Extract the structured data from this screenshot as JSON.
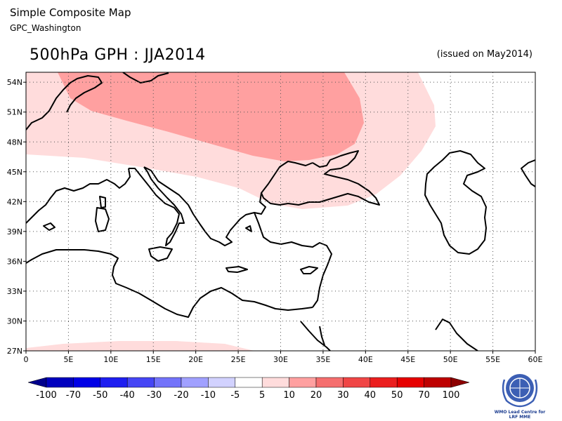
{
  "header": {
    "title": "Simple Composite Map",
    "subtitle": "GPC_Washington"
  },
  "map": {
    "title": "500hPa GPH : JJA2014",
    "issued": "(issued on May2014)",
    "lon_range": [
      0,
      60
    ],
    "lat_range": [
      27,
      55
    ],
    "lon_ticks": [
      "0",
      "5E",
      "10E",
      "15E",
      "20E",
      "25E",
      "30E",
      "35E",
      "40E",
      "45E",
      "50E",
      "55E",
      "60E"
    ],
    "lat_ticks": [
      "27N",
      "30N",
      "33N",
      "36N",
      "39N",
      "42N",
      "45N",
      "48N",
      "51N",
      "54N"
    ],
    "grid": "dotted",
    "anomaly_regions": [
      {
        "level": "5 to 10",
        "color": "#ffdcdc",
        "area": "central and eastern Europe, Black Sea, Caucasus"
      },
      {
        "level": "10 to 20",
        "color": "#ffa0a0",
        "area": "central Europe to Ukraine and southern Russia"
      },
      {
        "level": "5 to 10",
        "color": "#ffdcdc",
        "area": "northern Africa band near 27N"
      }
    ]
  },
  "colorbar": {
    "labels": [
      "-100",
      "-70",
      "-50",
      "-40",
      "-30",
      "-20",
      "-10",
      "-5",
      "5",
      "10",
      "20",
      "30",
      "40",
      "50",
      "70",
      "100"
    ],
    "colors": [
      "#00008c",
      "#0000be",
      "#0000e6",
      "#1e1ef0",
      "#4646f5",
      "#7373fa",
      "#a0a0ff",
      "#d2d2ff",
      "#ffffff",
      "#ffdcdc",
      "#ffa0a0",
      "#f56e6e",
      "#f04646",
      "#eb1e1e",
      "#e60000",
      "#be0000",
      "#8c0000"
    ]
  },
  "logo": {
    "line1": "WMO Lead Centre for",
    "line2": "LRF MME",
    "icon": "wmo-emblem-icon"
  }
}
